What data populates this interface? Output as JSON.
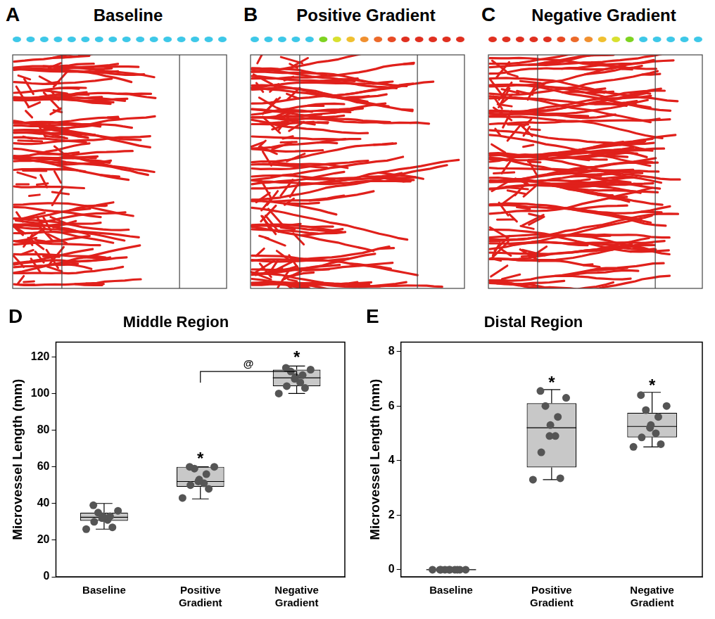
{
  "panels": [
    {
      "letter": "A",
      "title": "Baseline",
      "marker_colors": [
        "#3ec8e8",
        "#3ec8e8",
        "#3ec8e8",
        "#3ec8e8",
        "#3ec8e8",
        "#3ec8e8",
        "#3ec8e8",
        "#3ec8e8",
        "#3ec8e8",
        "#3ec8e8",
        "#3ec8e8",
        "#3ec8e8",
        "#3ec8e8",
        "#3ec8e8",
        "#3ec8e8",
        "#3ec8e8"
      ]
    },
    {
      "letter": "B",
      "title": "Positive Gradient",
      "marker_colors": [
        "#3ec8e8",
        "#3ec8e8",
        "#3ec8e8",
        "#3ec8e8",
        "#3ec8e8",
        "#7ed321",
        "#d8e030",
        "#f0c030",
        "#f09030",
        "#ec6a2a",
        "#e84a24",
        "#e03020",
        "#e03020",
        "#e03020",
        "#e03020",
        "#e03020"
      ]
    },
    {
      "letter": "C",
      "title": "Negative Gradient",
      "marker_colors": [
        "#e03020",
        "#e03020",
        "#e03020",
        "#e03020",
        "#e03020",
        "#e84a24",
        "#ec6a2a",
        "#f09030",
        "#f0c030",
        "#d8e030",
        "#7ed321",
        "#3ec8e8",
        "#3ec8e8",
        "#3ec8e8",
        "#3ec8e8",
        "#3ec8e8"
      ]
    }
  ],
  "chart_data": [
    {
      "letter": "D",
      "type": "box",
      "title": "Middle Region",
      "y_label": "Microvessel Length (mm)",
      "categories": [
        "Baseline",
        "Positive Gradient",
        "Negative Gradient"
      ],
      "values": [
        [
          26,
          27,
          30,
          31,
          32,
          33,
          33,
          35,
          36,
          39
        ],
        [
          43,
          48,
          50,
          51,
          52,
          53,
          56,
          59,
          60,
          60
        ],
        [
          100,
          103,
          104,
          106,
          108,
          109,
          110,
          112,
          113,
          114
        ]
      ],
      "q1": [
        30.5,
        49,
        104
      ],
      "median": [
        32.5,
        52,
        108.5
      ],
      "q3": [
        35,
        60,
        113
      ],
      "whisker_low": [
        26,
        42.5,
        100
      ],
      "whisker_high": [
        40,
        60,
        115
      ],
      "color": "#c8c8c8",
      "ylim": [
        0,
        128
      ],
      "yticks": [
        0,
        20,
        40,
        60,
        80,
        100,
        120
      ],
      "grid": false,
      "annotations": [
        {
          "text": "*",
          "category": "Positive Gradient",
          "y": 66
        },
        {
          "text": "*",
          "category": "Negative Gradient",
          "y": 121
        },
        {
          "text": "@",
          "from": "Positive Gradient",
          "to": "Negative Gradient",
          "y": 112
        }
      ]
    },
    {
      "letter": "E",
      "type": "box",
      "title": "Distal Region",
      "y_label": "Microvessel Length (mm)",
      "categories": [
        "Baseline",
        "Positive Gradient",
        "Negative Gradient"
      ],
      "values": [
        [
          0,
          0,
          0,
          0,
          0,
          0,
          0,
          0,
          0,
          0
        ],
        [
          3.3,
          3.35,
          4.3,
          4.9,
          4.9,
          5.3,
          5.6,
          6.0,
          6.3,
          6.55
        ],
        [
          4.5,
          4.6,
          4.85,
          5.0,
          5.2,
          5.3,
          5.6,
          5.85,
          6.0,
          6.4
        ]
      ],
      "q1": [
        0,
        3.75,
        4.85
      ],
      "median": [
        0,
        5.2,
        5.25
      ],
      "q3": [
        0,
        6.1,
        5.75
      ],
      "whisker_low": [
        0,
        3.3,
        4.5
      ],
      "whisker_high": [
        0,
        6.6,
        6.5
      ],
      "color": "#c8c8c8",
      "ylim": [
        -0.26,
        8.34
      ],
      "yticks": [
        0,
        2,
        4,
        6,
        8
      ],
      "grid": false,
      "annotations": [
        {
          "text": "*",
          "category": "Positive Gradient",
          "y": 6.95
        },
        {
          "text": "*",
          "category": "Negative Gradient",
          "y": 6.85
        }
      ]
    }
  ]
}
